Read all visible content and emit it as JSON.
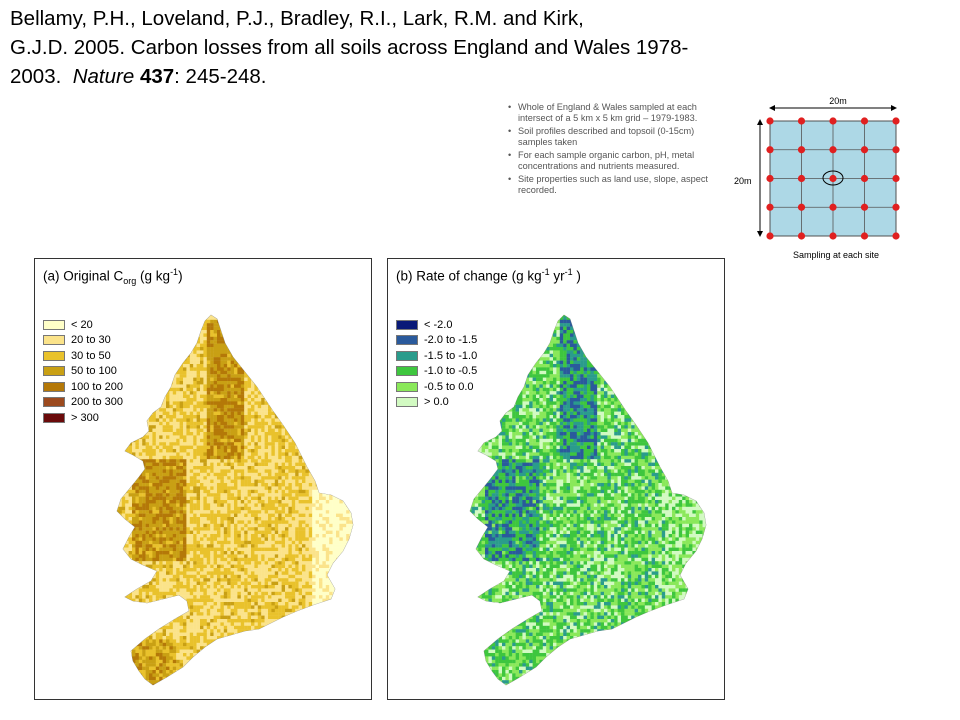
{
  "citation": {
    "line1": "Bellamy, P.H., Loveland, P.J., Bradley, R.I., Lark, R.M. and Kirk,",
    "line2": "G.J.D.  2005.  Carbon losses from all soils across England and Wales 1978-",
    "line3_pre": "2003.  ",
    "journal": "Nature",
    "volume": "437",
    "pages": ": 245-248."
  },
  "bullets": [
    "Whole of England & Wales sampled at each intersect of a 5 km x 5 km grid – 1979-1983.",
    "Soil profiles described and topsoil (0-15cm) samples taken",
    "For each sample organic carbon, pH, metal concentrations and nutrients measured.",
    "Site properties such as land use, slope, aspect recorded."
  ],
  "sampling": {
    "width_label": "20m",
    "height_label": "20m",
    "caption": "Sampling at each site",
    "grid_color": "#add8e6",
    "point_color": "#e02020"
  },
  "panel_a": {
    "title_prefix": "(a) Original C",
    "title_sub": "org",
    "title_mid": " (g kg",
    "title_sup": "-1",
    "title_end": ")",
    "legend": [
      {
        "label": "< 20",
        "color": "#ffffc8"
      },
      {
        "label": "20 to 30",
        "color": "#fbe38a"
      },
      {
        "label": "30 to 50",
        "color": "#e9c22c"
      },
      {
        "label": "50 to 100",
        "color": "#c9a014"
      },
      {
        "label": "100 to 200",
        "color": "#b47808"
      },
      {
        "label": "200 to 300",
        "color": "#9c4a1e"
      },
      {
        "label": "> 300",
        "color": "#6a0a0a"
      }
    ]
  },
  "panel_b": {
    "title_prefix": "(b) Rate of change (g kg",
    "title_sup1": "-1",
    "title_mid": " yr",
    "title_sup2": "-1",
    "title_end": " )",
    "legend": [
      {
        "label": "< -2.0",
        "color": "#0a1a78"
      },
      {
        "label": "-2.0 to -1.5",
        "color": "#2a5a9c"
      },
      {
        "label": "-1.5 to -1.0",
        "color": "#2a9c8c"
      },
      {
        "label": "-1.0 to -0.5",
        "color": "#3ec63e"
      },
      {
        "label": "-0.5 to 0.0",
        "color": "#8ae85a"
      },
      {
        "label": "> 0.0",
        "color": "#d2fac2"
      }
    ]
  }
}
